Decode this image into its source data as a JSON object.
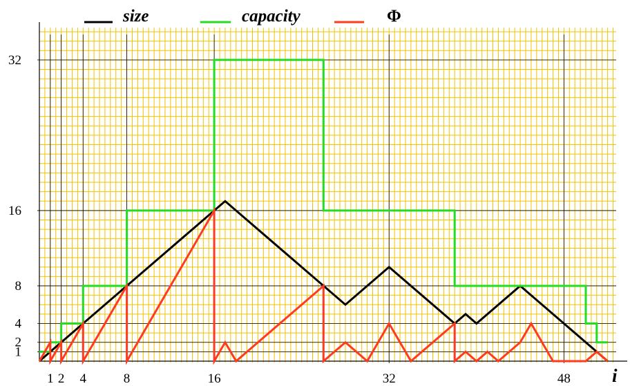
{
  "chart_data": {
    "type": "line",
    "title": "",
    "xlabel": "i",
    "ylabel": "",
    "xlim": [
      0,
      52
    ],
    "ylim": [
      0,
      34
    ],
    "grid": true,
    "grid_colors": {
      "minor": "#f2c200",
      "major": "#000000"
    },
    "x_ticks": [
      1,
      2,
      4,
      8,
      16,
      32,
      48
    ],
    "y_ticks": [
      1,
      2,
      4,
      8,
      16,
      32
    ],
    "legend_placement": "top",
    "series": [
      {
        "name": "size",
        "color": "#000000",
        "points": [
          [
            0,
            0
          ],
          [
            17,
            17
          ],
          [
            28,
            6
          ],
          [
            32,
            10
          ],
          [
            38,
            4
          ],
          [
            39,
            5
          ],
          [
            40,
            4
          ],
          [
            44,
            8
          ],
          [
            52,
            0
          ]
        ]
      },
      {
        "name": "capacity",
        "color": "#22dd22",
        "steps": [
          [
            0,
            1
          ],
          [
            1,
            2
          ],
          [
            2,
            4
          ],
          [
            4,
            8
          ],
          [
            8,
            16
          ],
          [
            16,
            32
          ],
          [
            26,
            16
          ],
          [
            38,
            8
          ],
          [
            50,
            4
          ],
          [
            51,
            2
          ],
          [
            52,
            2
          ]
        ]
      },
      {
        "name": "Φ",
        "color": "#ff3b1f",
        "points": [
          [
            0,
            0
          ],
          [
            1,
            2
          ],
          [
            1,
            0
          ],
          [
            2,
            2
          ],
          [
            2,
            0
          ],
          [
            4,
            4
          ],
          [
            4,
            0
          ],
          [
            8,
            8
          ],
          [
            8,
            0
          ],
          [
            16,
            16
          ],
          [
            16,
            0
          ],
          [
            17,
            2
          ],
          [
            18,
            0
          ],
          [
            26,
            8
          ],
          [
            26,
            0
          ],
          [
            28,
            2
          ],
          [
            30,
            0
          ],
          [
            32,
            4
          ],
          [
            34,
            0
          ],
          [
            38,
            4
          ],
          [
            38,
            0
          ],
          [
            39,
            1
          ],
          [
            40,
            0
          ],
          [
            41,
            1
          ],
          [
            42,
            0
          ],
          [
            44,
            2
          ],
          [
            45,
            4
          ],
          [
            47,
            0
          ],
          [
            50,
            0
          ],
          [
            51,
            1
          ],
          [
            52,
            0
          ]
        ]
      }
    ]
  }
}
